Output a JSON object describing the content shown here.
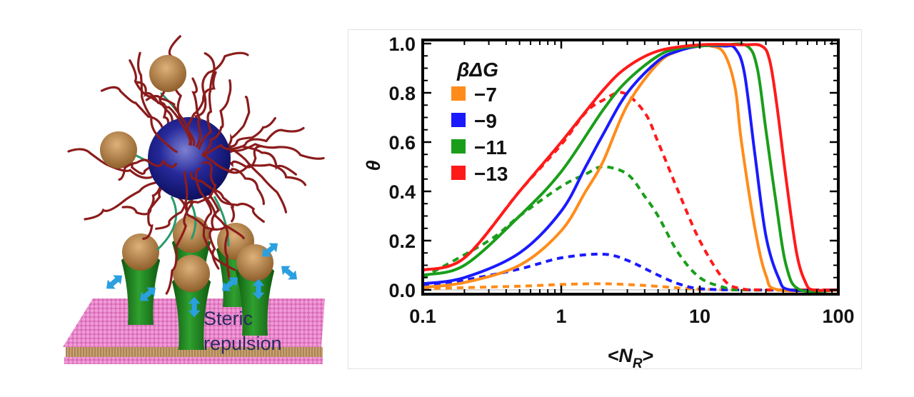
{
  "illustration": {
    "label_line1": "Steric",
    "label_line2": "repulsion",
    "colors": {
      "nanoparticle": "#1b1f8f",
      "ligand": "#c0884a",
      "polymer": "#8b1c1c",
      "tether": "#2a9a6a",
      "receptor": "#1e7a1e",
      "membrane": "#e07ac4",
      "arrows": "#2aa0e0"
    }
  },
  "chart_data": {
    "type": "line",
    "xlabel": "<N_R>",
    "xlabel_main": "<N",
    "xlabel_sub": "R",
    "xlabel_end": ">",
    "ylabel": "θ",
    "xscale": "log",
    "xlim": [
      0.1,
      100
    ],
    "ylim": [
      0,
      1
    ],
    "xticks": [
      "0.1",
      "1",
      "10",
      "100"
    ],
    "yticks": [
      "0.0",
      "0.2",
      "0.4",
      "0.6",
      "0.8",
      "1.0"
    ],
    "grid": false,
    "legend": {
      "title": "βΔG",
      "placement": "top-left",
      "entries": [
        "−7",
        "−9",
        "−11",
        "−13"
      ]
    },
    "series": [
      {
        "name": "−7",
        "color": "#ff8c1a",
        "style": "solid",
        "x": [
          0.1,
          0.2,
          0.5,
          1,
          1.5,
          2,
          3,
          5,
          7,
          10,
          12,
          15,
          18,
          20,
          25,
          30,
          37,
          100
        ],
        "y": [
          0.01,
          0.03,
          0.1,
          0.24,
          0.4,
          0.52,
          0.75,
          0.92,
          0.97,
          0.99,
          0.99,
          0.96,
          0.82,
          0.6,
          0.25,
          0.06,
          0,
          0
        ]
      },
      {
        "name": "−9",
        "color": "#1a1aff",
        "style": "solid",
        "x": [
          0.1,
          0.2,
          0.5,
          1,
          1.5,
          2,
          3,
          5,
          7,
          10,
          15,
          18,
          21,
          25,
          30,
          37,
          45,
          100
        ],
        "y": [
          0.025,
          0.05,
          0.15,
          0.32,
          0.5,
          0.63,
          0.8,
          0.93,
          0.97,
          0.99,
          0.99,
          0.98,
          0.88,
          0.55,
          0.22,
          0.05,
          0,
          0
        ]
      },
      {
        "name": "−11",
        "color": "#1a9e1a",
        "style": "solid",
        "x": [
          0.1,
          0.2,
          0.5,
          1,
          2,
          3,
          5,
          7,
          10,
          15,
          22,
          26,
          30,
          35,
          42,
          53,
          100
        ],
        "y": [
          0.06,
          0.1,
          0.3,
          0.48,
          0.73,
          0.85,
          0.95,
          0.98,
          0.99,
          0.995,
          0.99,
          0.9,
          0.65,
          0.38,
          0.1,
          0,
          0
        ]
      },
      {
        "name": "−13",
        "color": "#ff1a1a",
        "style": "solid",
        "x": [
          0.1,
          0.2,
          0.5,
          1,
          2,
          3,
          5,
          10,
          20,
          28,
          32,
          36,
          42,
          50,
          58,
          66,
          100
        ],
        "y": [
          0.08,
          0.13,
          0.4,
          0.6,
          0.81,
          0.905,
          0.97,
          0.995,
          0.995,
          0.99,
          0.93,
          0.75,
          0.45,
          0.15,
          0.03,
          0,
          0
        ]
      },
      {
        "name": "−7",
        "color": "#ff8c1a",
        "style": "dashed",
        "x": [
          0.1,
          0.5,
          1,
          2,
          4,
          7,
          10,
          20,
          100
        ],
        "y": [
          0.005,
          0.015,
          0.022,
          0.025,
          0.018,
          0.008,
          0.003,
          0,
          0
        ]
      },
      {
        "name": "−9",
        "color": "#1a1aff",
        "style": "dashed",
        "x": [
          0.1,
          0.2,
          0.5,
          1,
          2,
          3,
          5,
          7,
          10,
          20,
          100
        ],
        "y": [
          0.02,
          0.04,
          0.085,
          0.13,
          0.145,
          0.12,
          0.06,
          0.025,
          0.005,
          0,
          0
        ]
      },
      {
        "name": "−11",
        "color": "#1a9e1a",
        "style": "dashed",
        "x": [
          0.1,
          0.3,
          0.5,
          1,
          1.5,
          2,
          3,
          4,
          5,
          7,
          10,
          15,
          20,
          100
        ],
        "y": [
          0.05,
          0.2,
          0.3,
          0.42,
          0.47,
          0.5,
          0.47,
          0.38,
          0.3,
          0.15,
          0.05,
          0.01,
          0,
          0
        ]
      },
      {
        "name": "−13",
        "color": "#ff1a1a",
        "style": "dashed",
        "x": [
          0.1,
          0.2,
          0.5,
          1,
          1.5,
          2,
          2.8,
          4,
          5,
          7,
          10,
          15,
          20,
          30,
          100
        ],
        "y": [
          0.08,
          0.13,
          0.4,
          0.59,
          0.72,
          0.77,
          0.8,
          0.72,
          0.6,
          0.4,
          0.2,
          0.04,
          0.005,
          0,
          0
        ]
      }
    ]
  }
}
